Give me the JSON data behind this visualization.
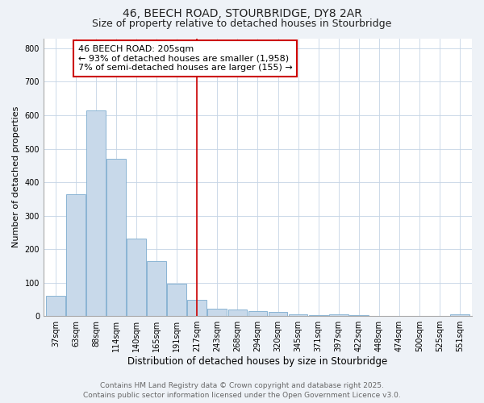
{
  "title1": "46, BEECH ROAD, STOURBRIDGE, DY8 2AR",
  "title2": "Size of property relative to detached houses in Stourbridge",
  "xlabel": "Distribution of detached houses by size in Stourbridge",
  "ylabel": "Number of detached properties",
  "categories": [
    "37sqm",
    "63sqm",
    "88sqm",
    "114sqm",
    "140sqm",
    "165sqm",
    "191sqm",
    "217sqm",
    "243sqm",
    "268sqm",
    "294sqm",
    "320sqm",
    "345sqm",
    "371sqm",
    "397sqm",
    "422sqm",
    "448sqm",
    "474sqm",
    "500sqm",
    "525sqm",
    "551sqm"
  ],
  "values": [
    60,
    365,
    615,
    470,
    232,
    165,
    97,
    48,
    22,
    20,
    15,
    13,
    5,
    3,
    4,
    2,
    1,
    1,
    1,
    1,
    5
  ],
  "bar_color": "#c8d9ea",
  "bar_edge_color": "#8ab4d4",
  "red_line_index": 7,
  "red_line_color": "#cc0000",
  "annotation_title": "46 BEECH ROAD: 205sqm",
  "annotation_line1": "← 93% of detached houses are smaller (1,958)",
  "annotation_line2": "7% of semi-detached houses are larger (155) →",
  "annotation_box_facecolor": "#ffffff",
  "annotation_box_edgecolor": "#cc0000",
  "ylim": [
    0,
    830
  ],
  "yticks": [
    0,
    100,
    200,
    300,
    400,
    500,
    600,
    700,
    800
  ],
  "footer1": "Contains HM Land Registry data © Crown copyright and database right 2025.",
  "footer2": "Contains public sector information licensed under the Open Government Licence v3.0.",
  "bg_color": "#eef2f7",
  "plot_bg_color": "#ffffff",
  "grid_color": "#c5d5e5",
  "title1_fontsize": 10,
  "title2_fontsize": 9,
  "xlabel_fontsize": 8.5,
  "ylabel_fontsize": 8,
  "tick_fontsize": 7,
  "annotation_fontsize": 8,
  "footer_fontsize": 6.5
}
